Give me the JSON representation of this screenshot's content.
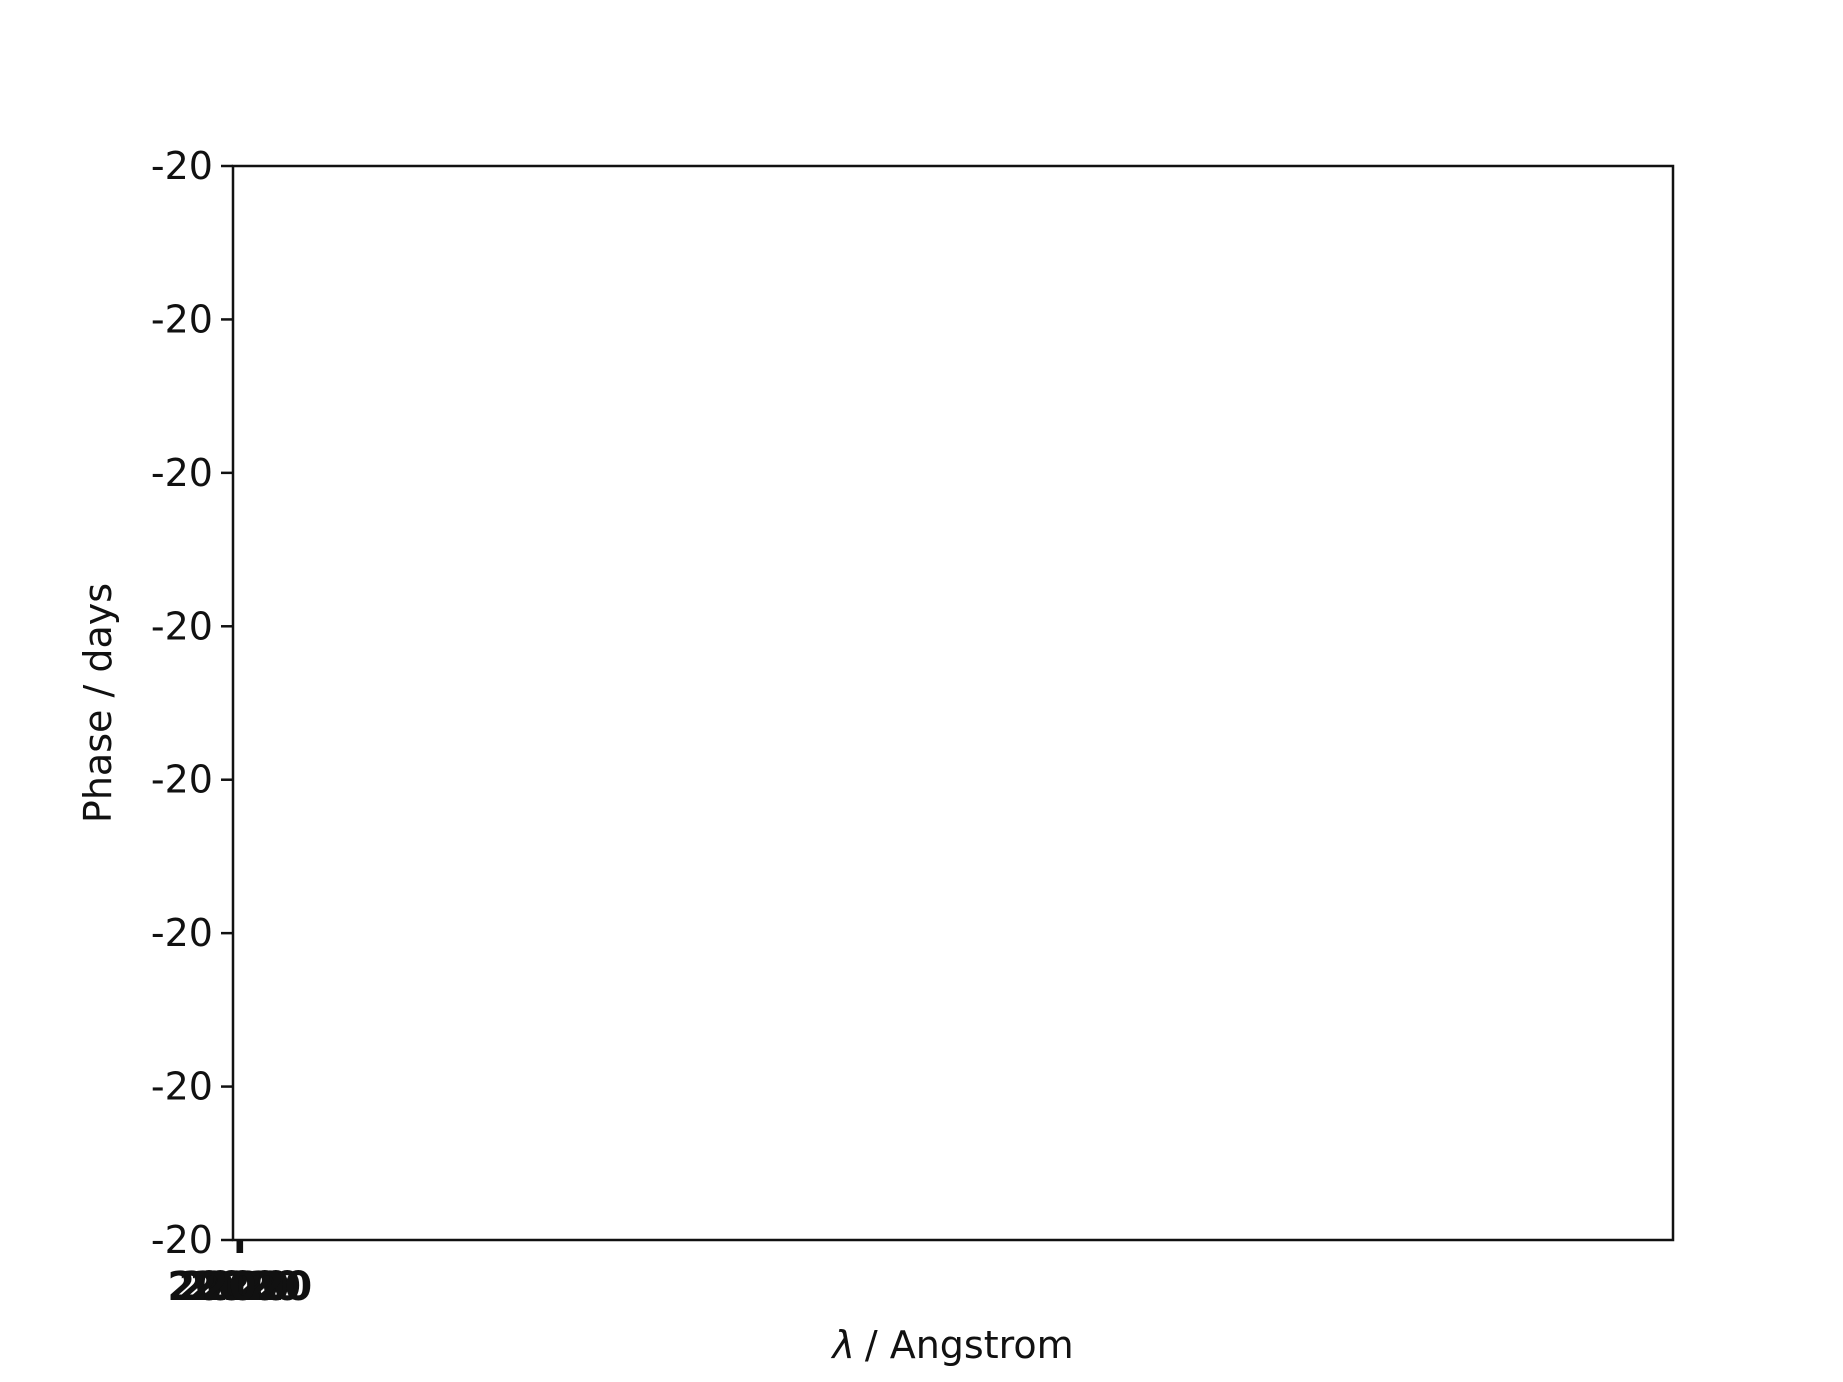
{
  "chart_data": {
    "type": "line",
    "title": "",
    "xlabel": "λ / Angstrom",
    "xlabel_symbol": "λ",
    "xlabel_unit": "/ Angstrom",
    "ylabel": "Phase / days",
    "yticks": [
      "-20",
      "-20",
      "-20",
      "-20",
      "-20",
      "-20",
      "-20",
      "-20"
    ],
    "xticks": [
      "2020",
      "2020",
      "2020",
      "2020"
    ],
    "grid": false,
    "legend": "none",
    "series": []
  }
}
